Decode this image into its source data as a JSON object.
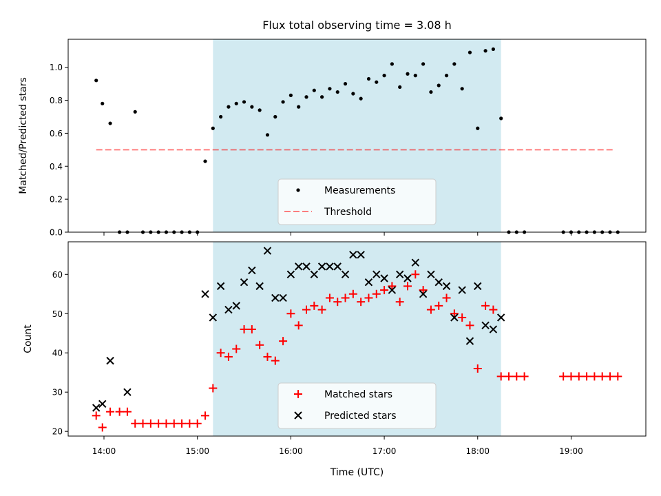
{
  "chart_data": [
    {
      "type": "scatter",
      "title": "Flux total observing time = 3.08 h",
      "xlabel": "",
      "ylabel": "Matched/Predicted stars",
      "xlim": [
        "13:37",
        "19:48"
      ],
      "ylim": [
        0,
        1.17
      ],
      "yticks": [
        0.0,
        0.2,
        0.4,
        0.6,
        0.8,
        1.0
      ],
      "ytick_labels": [
        "0.0",
        "0.2",
        "0.4",
        "0.6",
        "0.8",
        "1.0"
      ],
      "shaded_region": {
        "start": "15:10",
        "end": "18:15",
        "color": "#add8e6"
      },
      "legend": {
        "position": "lower-center",
        "entries": [
          "Measurements",
          "Threshold"
        ]
      },
      "threshold": {
        "name": "Threshold",
        "value": 0.5,
        "x": [
          "13:55",
          "19:27"
        ],
        "color": "#ff0000",
        "style": "dashed"
      },
      "series": [
        {
          "name": "Measurements",
          "marker": "dot",
          "color": "#000000",
          "x": [
            "13:55",
            "13:59",
            "14:04",
            "14:10",
            "14:15",
            "14:20",
            "14:25",
            "14:30",
            "14:35",
            "14:40",
            "14:45",
            "14:50",
            "14:55",
            "15:00",
            "15:05",
            "15:10",
            "15:15",
            "15:20",
            "15:25",
            "15:30",
            "15:35",
            "15:40",
            "15:45",
            "15:50",
            "15:55",
            "16:00",
            "16:05",
            "16:10",
            "16:15",
            "16:20",
            "16:25",
            "16:30",
            "16:35",
            "16:40",
            "16:45",
            "16:50",
            "16:55",
            "17:00",
            "17:05",
            "17:10",
            "17:15",
            "17:20",
            "17:25",
            "17:30",
            "17:35",
            "17:40",
            "17:45",
            "17:50",
            "17:55",
            "18:00",
            "18:05",
            "18:10",
            "18:15",
            "18:20",
            "18:25",
            "18:30",
            "18:55",
            "19:00",
            "19:05",
            "19:10",
            "19:15",
            "19:20",
            "19:25",
            "19:30"
          ],
          "values": [
            0.92,
            0.78,
            0.66,
            0.0,
            0.0,
            0.73,
            0.0,
            0.0,
            0.0,
            0.0,
            0.0,
            0.0,
            0.0,
            0.0,
            0.43,
            0.63,
            0.7,
            0.76,
            0.78,
            0.79,
            0.76,
            0.74,
            0.59,
            0.7,
            0.79,
            0.83,
            0.76,
            0.82,
            0.86,
            0.82,
            0.87,
            0.85,
            0.9,
            0.84,
            0.81,
            0.93,
            0.91,
            0.95,
            1.02,
            0.88,
            0.96,
            0.95,
            1.02,
            0.85,
            0.89,
            0.95,
            1.02,
            0.87,
            1.09,
            0.63,
            1.1,
            1.11,
            0.69,
            0.0,
            0.0,
            0.0,
            0.0,
            0.0,
            0.0,
            0.0,
            0.0,
            0.0,
            0.0,
            0.0
          ]
        }
      ]
    },
    {
      "type": "scatter",
      "title": "",
      "xlabel": "Time (UTC)",
      "ylabel": "Count",
      "xlim": [
        "13:37",
        "19:48"
      ],
      "ylim": [
        18.8,
        68.3
      ],
      "xticks": [
        "14:00",
        "15:00",
        "16:00",
        "17:00",
        "18:00",
        "19:00"
      ],
      "yticks": [
        20,
        30,
        40,
        50,
        60
      ],
      "shaded_region": {
        "start": "15:10",
        "end": "18:15",
        "color": "#add8e6"
      },
      "legend": {
        "position": "lower-center",
        "entries": [
          "Matched stars",
          "Predicted stars"
        ]
      },
      "series": [
        {
          "name": "Matched stars",
          "marker": "plus",
          "color": "#ff0000",
          "x": [
            "13:55",
            "13:59",
            "14:04",
            "14:10",
            "14:15",
            "14:20",
            "14:25",
            "14:30",
            "14:35",
            "14:40",
            "14:45",
            "14:50",
            "14:55",
            "15:00",
            "15:05",
            "15:10",
            "15:15",
            "15:20",
            "15:25",
            "15:30",
            "15:35",
            "15:40",
            "15:45",
            "15:50",
            "15:55",
            "16:00",
            "16:05",
            "16:10",
            "16:15",
            "16:20",
            "16:25",
            "16:30",
            "16:35",
            "16:40",
            "16:45",
            "16:50",
            "16:55",
            "17:00",
            "17:05",
            "17:10",
            "17:15",
            "17:20",
            "17:25",
            "17:30",
            "17:35",
            "17:40",
            "17:45",
            "17:50",
            "17:55",
            "18:00",
            "18:05",
            "18:10",
            "18:15",
            "18:20",
            "18:25",
            "18:30",
            "18:55",
            "19:00",
            "19:05",
            "19:10",
            "19:15",
            "19:20",
            "19:25",
            "19:30"
          ],
          "values": [
            24,
            21,
            25,
            25,
            25,
            22,
            22,
            22,
            22,
            22,
            22,
            22,
            22,
            22,
            24,
            31,
            40,
            39,
            41,
            46,
            46,
            42,
            39,
            38,
            43,
            50,
            47,
            51,
            52,
            51,
            54,
            53,
            54,
            55,
            53,
            54,
            55,
            56,
            57,
            53,
            57,
            60,
            56,
            51,
            52,
            54,
            50,
            49,
            47,
            36,
            52,
            51,
            34,
            34,
            34,
            34,
            34,
            34,
            34,
            34,
            34,
            34,
            34,
            34
          ]
        },
        {
          "name": "Predicted stars",
          "marker": "x",
          "color": "#000000",
          "x": [
            "13:55",
            "13:59",
            "14:04",
            "14:15",
            "15:05",
            "15:10",
            "15:15",
            "15:20",
            "15:25",
            "15:30",
            "15:35",
            "15:40",
            "15:45",
            "15:50",
            "15:55",
            "16:00",
            "16:05",
            "16:10",
            "16:15",
            "16:20",
            "16:25",
            "16:30",
            "16:35",
            "16:40",
            "16:45",
            "16:50",
            "16:55",
            "17:00",
            "17:05",
            "17:10",
            "17:15",
            "17:20",
            "17:25",
            "17:30",
            "17:35",
            "17:40",
            "17:45",
            "17:50",
            "17:55",
            "18:00",
            "18:05",
            "18:10",
            "18:15"
          ],
          "values": [
            26,
            27,
            38,
            30,
            55,
            49,
            57,
            51,
            52,
            58,
            61,
            57,
            66,
            54,
            54,
            60,
            62,
            62,
            60,
            62,
            62,
            62,
            60,
            65,
            65,
            58,
            60,
            59,
            56,
            60,
            59,
            63,
            55,
            60,
            58,
            57,
            49,
            56,
            43,
            57,
            47,
            46,
            49
          ]
        }
      ]
    }
  ]
}
